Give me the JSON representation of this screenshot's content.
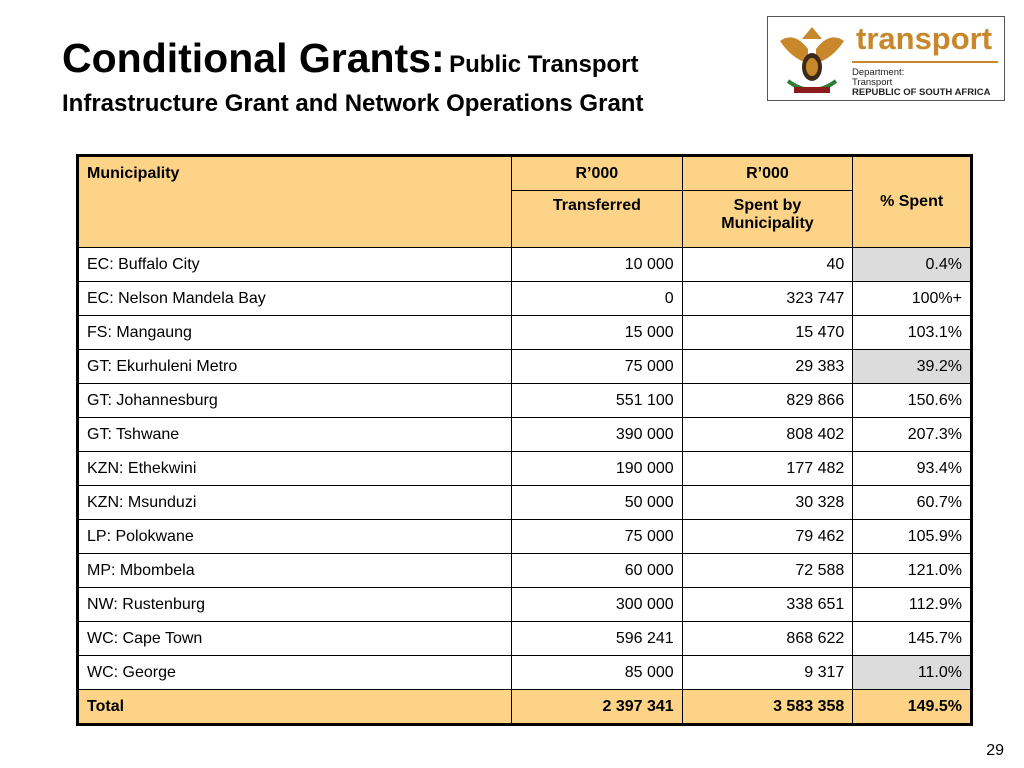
{
  "header": {
    "title": "Conditional Grants:",
    "title_suffix": "Public Transport",
    "subtitle": "Infrastructure Grant and Network Operations Grant"
  },
  "logo": {
    "name": "transport",
    "line1": "Department:",
    "line2": "Transport",
    "line3": "REPUBLIC OF SOUTH AFRICA"
  },
  "table": {
    "header_top": [
      "Municipality",
      "R’000",
      "R’000",
      "% Spent"
    ],
    "header_sub": [
      "Transferred",
      "Spent by Municipality"
    ],
    "rows": [
      [
        "EC: Buffalo City",
        "10 000",
        "40",
        "0.4%"
      ],
      [
        "EC: Nelson Mandela Bay",
        "0",
        "323 747",
        "100%+"
      ],
      [
        "FS: Mangaung",
        "15 000",
        "15 470",
        "103.1%"
      ],
      [
        "GT: Ekurhuleni Metro",
        "75 000",
        "29 383",
        "39.2%"
      ],
      [
        "GT: Johannesburg",
        "551 100",
        "829 866",
        "150.6%"
      ],
      [
        "GT: Tshwane",
        "390 000",
        "808 402",
        "207.3%"
      ],
      [
        "KZN: Ethekwini",
        "190 000",
        "177 482",
        "93.4%"
      ],
      [
        "KZN: Msunduzi",
        "50 000",
        "30 328",
        "60.7%"
      ],
      [
        "LP: Polokwane",
        "75 000",
        "79 462",
        "105.9%"
      ],
      [
        "MP: Mbombela",
        "60 000",
        "72 588",
        "121.0%"
      ],
      [
        "NW: Rustenburg",
        "300 000",
        "338 651",
        "112.9%"
      ],
      [
        "WC: Cape Town",
        "596 241",
        "868 622",
        "145.7%"
      ],
      [
        "WC: George",
        "85 000",
        "9 317",
        "11.0%"
      ]
    ],
    "total": [
      "Total",
      "2 397 341",
      "3 583 358",
      "149.5%"
    ],
    "shaded_rows": [
      0,
      3,
      12
    ]
  },
  "page_number": "29"
}
